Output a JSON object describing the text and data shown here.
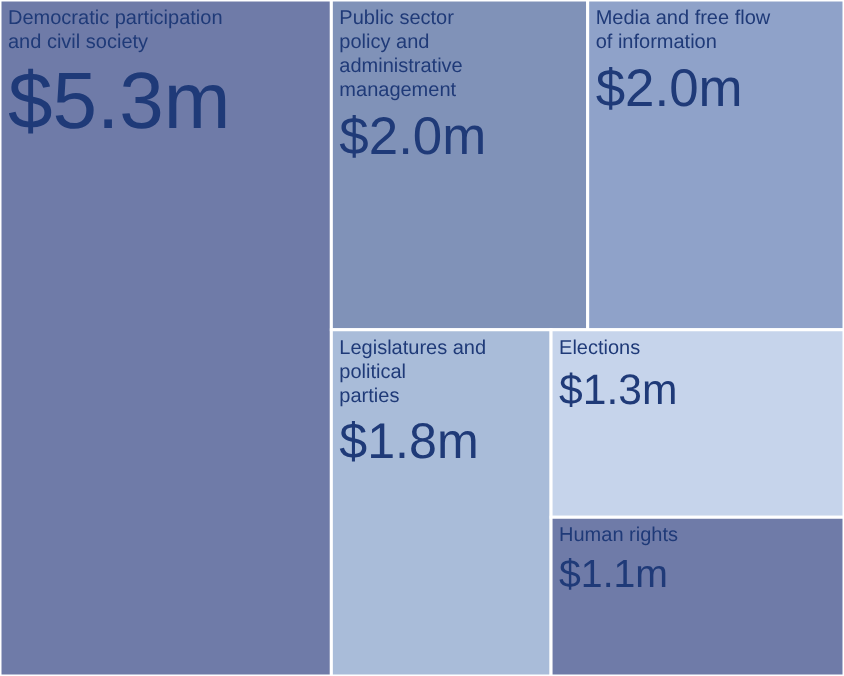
{
  "chart_data": {
    "type": "other",
    "categories": [
      "Democratic participation and civil society",
      "Public sector policy and administrative management",
      "Media and free flow of information",
      "Legislatures and political parties",
      "Elections",
      "Human rights"
    ],
    "values": [
      5.3,
      2.0,
      2.0,
      1.8,
      1.3,
      1.1
    ],
    "value_labels": [
      "$5.3m",
      "$2.0m",
      "$2.0m",
      "$1.8m",
      "$1.3m",
      "$1.1m"
    ],
    "colors": [
      "#6f7ba8",
      "#8092b8",
      "#8fa2c9",
      "#a9bcd9",
      "#c6d4eb",
      "#6f7ba8"
    ]
  }
}
